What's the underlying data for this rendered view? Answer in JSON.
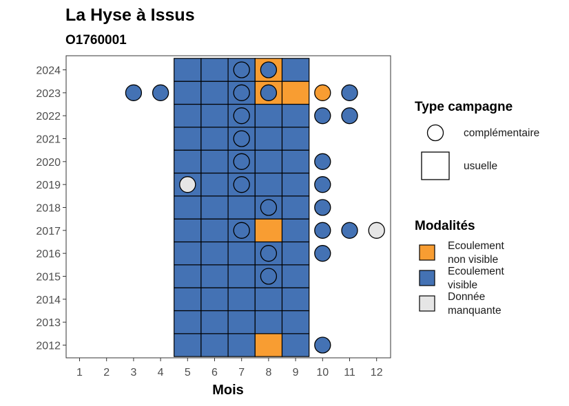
{
  "chart_data": {
    "type": "heatmap",
    "title": "La Hyse à Issus",
    "subtitle": "O1760001",
    "xlabel": "Mois",
    "ylabel": "",
    "x_ticks": [
      1,
      2,
      3,
      4,
      5,
      6,
      7,
      8,
      9,
      10,
      11,
      12
    ],
    "y_ticks": [
      2012,
      2013,
      2014,
      2015,
      2016,
      2017,
      2018,
      2019,
      2020,
      2021,
      2022,
      2023,
      2024
    ],
    "xlim": [
      0.5,
      12.5
    ],
    "ylim": [
      2011.5,
      2024.5
    ],
    "grid": false,
    "colors": {
      "Ecoulement non visible": "#f89d32",
      "Ecoulement visible": "#4472b4",
      "Donnée manquante": "#e6e6e6"
    },
    "legend": {
      "shape_title": "Type campagne",
      "shape_entries": [
        {
          "label": "complémentaire",
          "shape": "circle"
        },
        {
          "label": "usuelle",
          "shape": "square"
        }
      ],
      "fill_title": "Modalités",
      "fill_entries": [
        {
          "label_line1": "Ecoulement",
          "label_line2": "non visible",
          "modality": "Ecoulement non visible"
        },
        {
          "label_line1": "Ecoulement",
          "label_line2": "visible",
          "modality": "Ecoulement visible"
        },
        {
          "label_line1": "Donnée",
          "label_line2": "manquante",
          "modality": "Donnée manquante"
        }
      ],
      "position": "right"
    },
    "usuelle": [
      {
        "year": 2012,
        "months": [
          5,
          6,
          7,
          8,
          9
        ],
        "values": [
          "visible",
          "visible",
          "visible",
          "non visible",
          "visible"
        ]
      },
      {
        "year": 2013,
        "months": [
          5,
          6,
          7,
          8,
          9
        ],
        "values": [
          "visible",
          "visible",
          "visible",
          "visible",
          "visible"
        ]
      },
      {
        "year": 2014,
        "months": [
          5,
          6,
          7,
          8,
          9
        ],
        "values": [
          "visible",
          "visible",
          "visible",
          "visible",
          "visible"
        ]
      },
      {
        "year": 2015,
        "months": [
          5,
          6,
          7,
          8,
          9
        ],
        "values": [
          "visible",
          "visible",
          "visible",
          "visible",
          "visible"
        ]
      },
      {
        "year": 2016,
        "months": [
          5,
          6,
          7,
          8,
          9
        ],
        "values": [
          "visible",
          "visible",
          "visible",
          "visible",
          "visible"
        ]
      },
      {
        "year": 2017,
        "months": [
          5,
          6,
          7,
          8,
          9
        ],
        "values": [
          "visible",
          "visible",
          "visible",
          "non visible",
          "visible"
        ]
      },
      {
        "year": 2018,
        "months": [
          5,
          6,
          7,
          8,
          9
        ],
        "values": [
          "visible",
          "visible",
          "visible",
          "visible",
          "visible"
        ]
      },
      {
        "year": 2019,
        "months": [
          5,
          6,
          7,
          8,
          9
        ],
        "values": [
          "visible",
          "visible",
          "visible",
          "visible",
          "visible"
        ]
      },
      {
        "year": 2020,
        "months": [
          5,
          6,
          7,
          8,
          9
        ],
        "values": [
          "visible",
          "visible",
          "visible",
          "visible",
          "visible"
        ]
      },
      {
        "year": 2021,
        "months": [
          5,
          6,
          7,
          8,
          9
        ],
        "values": [
          "visible",
          "visible",
          "visible",
          "visible",
          "visible"
        ]
      },
      {
        "year": 2022,
        "months": [
          5,
          6,
          7,
          8,
          9
        ],
        "values": [
          "visible",
          "visible",
          "visible",
          "visible",
          "visible"
        ]
      },
      {
        "year": 2023,
        "months": [
          5,
          6,
          7,
          8,
          9
        ],
        "values": [
          "visible",
          "visible",
          "visible",
          "non visible",
          "non visible"
        ]
      },
      {
        "year": 2024,
        "months": [
          5,
          6,
          7,
          8,
          9
        ],
        "values": [
          "visible",
          "visible",
          "visible",
          "non visible",
          "visible"
        ]
      }
    ],
    "complementaire": [
      {
        "year": 2024,
        "month": 7,
        "value": "visible"
      },
      {
        "year": 2024,
        "month": 8,
        "value": "visible"
      },
      {
        "year": 2023,
        "month": 3,
        "value": "visible"
      },
      {
        "year": 2023,
        "month": 4,
        "value": "visible"
      },
      {
        "year": 2023,
        "month": 7,
        "value": "visible"
      },
      {
        "year": 2023,
        "month": 8,
        "value": "visible"
      },
      {
        "year": 2023,
        "month": 10,
        "value": "non visible"
      },
      {
        "year": 2023,
        "month": 11,
        "value": "visible"
      },
      {
        "year": 2022,
        "month": 7,
        "value": "visible"
      },
      {
        "year": 2022,
        "month": 10,
        "value": "visible"
      },
      {
        "year": 2022,
        "month": 11,
        "value": "visible"
      },
      {
        "year": 2021,
        "month": 7,
        "value": "visible"
      },
      {
        "year": 2020,
        "month": 7,
        "value": "visible"
      },
      {
        "year": 2020,
        "month": 10,
        "value": "visible"
      },
      {
        "year": 2019,
        "month": 5,
        "value": "manquante"
      },
      {
        "year": 2019,
        "month": 7,
        "value": "visible"
      },
      {
        "year": 2019,
        "month": 10,
        "value": "visible"
      },
      {
        "year": 2018,
        "month": 8,
        "value": "visible"
      },
      {
        "year": 2018,
        "month": 10,
        "value": "visible"
      },
      {
        "year": 2017,
        "month": 7,
        "value": "visible"
      },
      {
        "year": 2017,
        "month": 10,
        "value": "visible"
      },
      {
        "year": 2017,
        "month": 11,
        "value": "visible"
      },
      {
        "year": 2017,
        "month": 12,
        "value": "manquante"
      },
      {
        "year": 2016,
        "month": 8,
        "value": "visible"
      },
      {
        "year": 2016,
        "month": 10,
        "value": "visible"
      },
      {
        "year": 2015,
        "month": 8,
        "value": "visible"
      },
      {
        "year": 2012,
        "month": 10,
        "value": "visible"
      }
    ]
  }
}
